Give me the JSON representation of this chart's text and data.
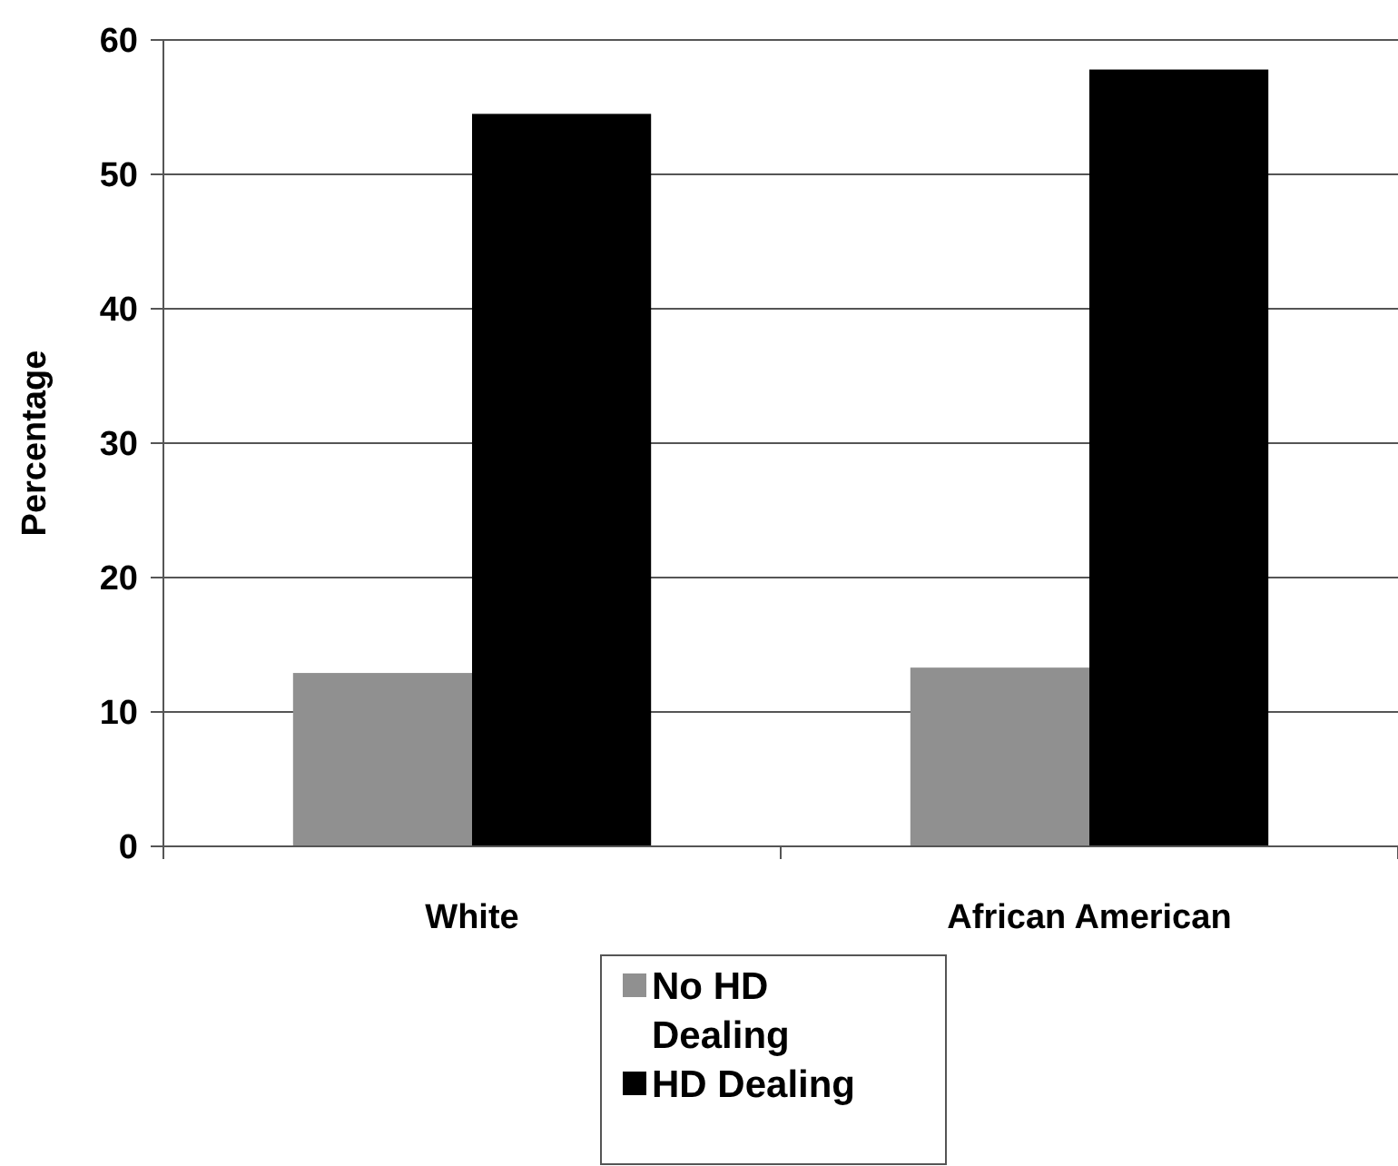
{
  "chart_data": {
    "type": "bar",
    "ylabel": "Percentage",
    "categories": [
      "White",
      "African American"
    ],
    "series": [
      {
        "name": "No HD Dealing",
        "color": "#909090",
        "values": [
          12.9,
          13.3
        ]
      },
      {
        "name": "HD Dealing",
        "color": "#000000",
        "values": [
          54.5,
          57.8
        ]
      }
    ],
    "ylim": [
      0,
      60
    ],
    "yticks": [
      0,
      10,
      20,
      30,
      40,
      50,
      60
    ],
    "grid": "y",
    "legend": "bottom"
  }
}
